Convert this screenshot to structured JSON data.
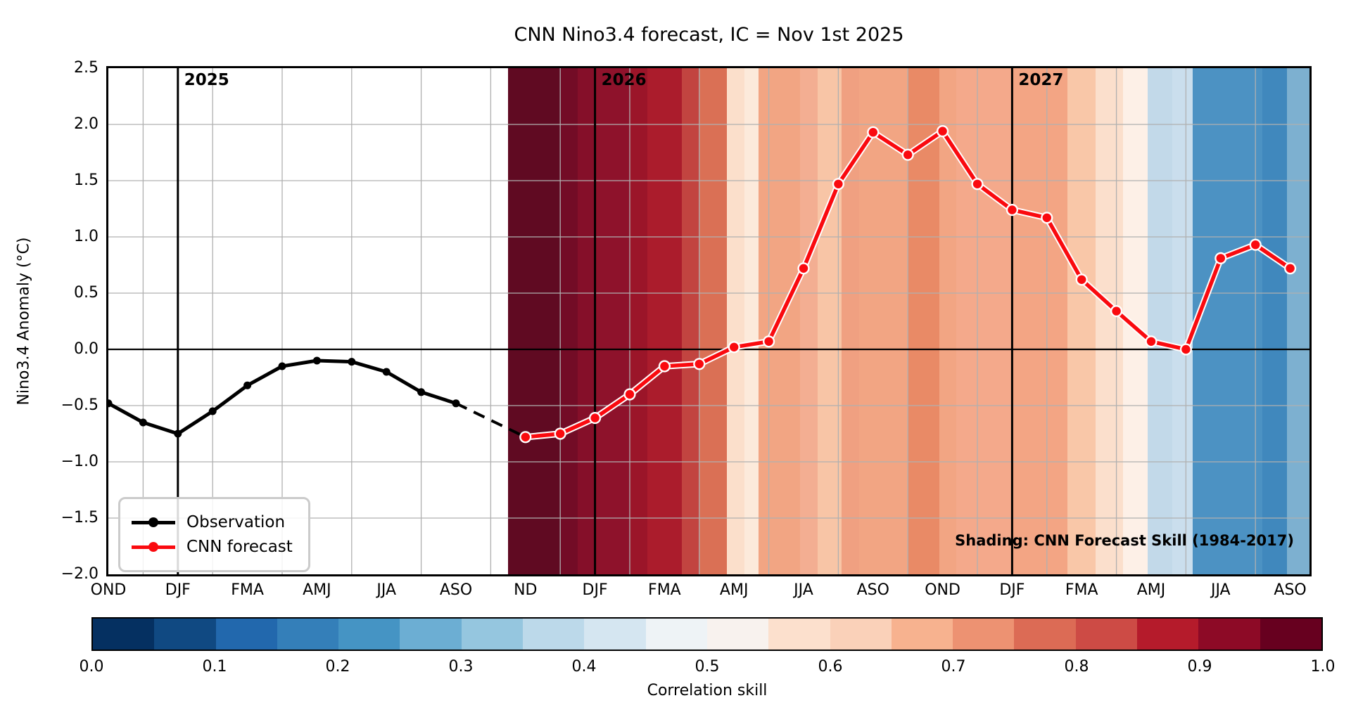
{
  "title": "CNN Nino3.4 forecast, IC = Nov 1st 2025",
  "axes": {
    "ylabel": "Nino3.4 Anomaly (°C)",
    "y_tick_labels": [
      "2.5",
      "2.0",
      "1.5",
      "1.0",
      "0.5",
      "0.0",
      "−0.5",
      "−1.0",
      "−1.5",
      "−2.0"
    ],
    "y_tick_values": [
      2.5,
      2.0,
      1.5,
      1.0,
      0.5,
      0.0,
      -0.5,
      -1.0,
      -1.5,
      -2.0
    ],
    "x_tick_labels": [
      "OND",
      "DJF",
      "FMA",
      "AMJ",
      "JJA",
      "ASO",
      "ND",
      "DJF",
      "FMA",
      "AMJ",
      "JJA",
      "ASO",
      "OND",
      "DJF",
      "FMA",
      "AMJ",
      "JJA",
      "ASO"
    ],
    "x_tick_indices": [
      0,
      2,
      4,
      6,
      8,
      10,
      12,
      14,
      16,
      18,
      20,
      22,
      24,
      26,
      28,
      30,
      32,
      34
    ]
  },
  "year_markers": [
    {
      "label": "2025",
      "month_index": 2
    },
    {
      "label": "2026",
      "month_index": 14
    },
    {
      "label": "2027",
      "month_index": 26
    }
  ],
  "legend": [
    {
      "label": "Observation",
      "color": "#000000"
    },
    {
      "label": "CNN forecast",
      "color": "#fa0a0f"
    }
  ],
  "annotation": "Shading: CNN Forecast Skill (1984-2017)",
  "chart_data": {
    "type": "line",
    "title": "CNN Nino3.4 forecast, IC = Nov 1st 2025",
    "xlabel_note": "x unit = month index, 0 = OND 2024; ticks labeled every 2 months",
    "ylabel": "Nino3.4 Anomaly (°C)",
    "ylim": [
      -2.0,
      2.5
    ],
    "xlim": [
      0,
      34.56
    ],
    "grid": true,
    "series": [
      {
        "name": "Observation",
        "color": "#000000",
        "style": "solid",
        "marker": "circle",
        "x": [
          0,
          1,
          2,
          3,
          4,
          5,
          6,
          7,
          8,
          9,
          10
        ],
        "values": [
          -0.48,
          -0.65,
          -0.75,
          -0.55,
          -0.32,
          -0.15,
          -0.1,
          -0.11,
          -0.2,
          -0.38,
          -0.48
        ]
      },
      {
        "name": "connector",
        "color": "#000000",
        "style": "dashed",
        "marker": "none",
        "x": [
          10,
          12
        ],
        "values": [
          -0.48,
          -0.78
        ]
      },
      {
        "name": "CNN forecast",
        "color": "#fa0a0f",
        "style": "solid",
        "marker": "circle-white-edge",
        "x": [
          12,
          13,
          14,
          15,
          16,
          17,
          18,
          19,
          20,
          21,
          22,
          23,
          24,
          25,
          26,
          27,
          28,
          29,
          30,
          31,
          32,
          33,
          34
        ],
        "values": [
          -0.78,
          -0.75,
          -0.61,
          -0.4,
          -0.15,
          -0.13,
          0.02,
          0.07,
          0.72,
          1.47,
          1.93,
          1.73,
          1.94,
          1.47,
          1.24,
          1.17,
          0.62,
          0.34,
          0.07,
          0.0,
          0.81,
          0.93,
          0.72
        ]
      }
    ],
    "skill_shading_bands": [
      {
        "from": 11.5,
        "to": 13.0,
        "color": "#600a22",
        "skill_approx": 0.97
      },
      {
        "from": 13.0,
        "to": 13.5,
        "color": "#730c26",
        "skill_approx": 0.93
      },
      {
        "from": 13.5,
        "to": 14.0,
        "color": "#850f29",
        "skill_approx": 0.92
      },
      {
        "from": 14.0,
        "to": 15.0,
        "color": "#8e122b",
        "skill_approx": 0.91
      },
      {
        "from": 15.0,
        "to": 15.5,
        "color": "#9b1529",
        "skill_approx": 0.89
      },
      {
        "from": 15.5,
        "to": 16.5,
        "color": "#ab1c2c",
        "skill_approx": 0.87
      },
      {
        "from": 16.5,
        "to": 17.0,
        "color": "#c24440",
        "skill_approx": 0.83
      },
      {
        "from": 17.0,
        "to": 17.8,
        "color": "#da7055",
        "skill_approx": 0.78
      },
      {
        "from": 17.8,
        "to": 18.3,
        "color": "#fbdfcb",
        "skill_approx": 0.59
      },
      {
        "from": 18.3,
        "to": 18.7,
        "color": "#fceadb",
        "skill_approx": 0.57
      },
      {
        "from": 18.7,
        "to": 19.9,
        "color": "#f2a583",
        "skill_approx": 0.66
      },
      {
        "from": 19.9,
        "to": 20.4,
        "color": "#f3ae92",
        "skill_approx": 0.65
      },
      {
        "from": 20.4,
        "to": 21.1,
        "color": "#f8c5a6",
        "skill_approx": 0.62
      },
      {
        "from": 21.1,
        "to": 21.6,
        "color": "#f0a081",
        "skill_approx": 0.67
      },
      {
        "from": 21.6,
        "to": 23.0,
        "color": "#f2a583",
        "skill_approx": 0.66
      },
      {
        "from": 23.0,
        "to": 23.9,
        "color": "#e98a66",
        "skill_approx": 0.7
      },
      {
        "from": 23.9,
        "to": 24.4,
        "color": "#f2a583",
        "skill_approx": 0.66
      },
      {
        "from": 24.4,
        "to": 26.0,
        "color": "#f4a98b",
        "skill_approx": 0.65
      },
      {
        "from": 26.0,
        "to": 27.6,
        "color": "#f3a584",
        "skill_approx": 0.66
      },
      {
        "from": 27.6,
        "to": 28.4,
        "color": "#f9c7a8",
        "skill_approx": 0.62
      },
      {
        "from": 28.4,
        "to": 29.2,
        "color": "#fbdfcc",
        "skill_approx": 0.59
      },
      {
        "from": 29.2,
        "to": 29.9,
        "color": "#fdf0e7",
        "skill_approx": 0.54
      },
      {
        "from": 29.9,
        "to": 30.6,
        "color": "#c2d9e9",
        "skill_approx": 0.43
      },
      {
        "from": 30.6,
        "to": 31.2,
        "color": "#cadeed",
        "skill_approx": 0.44
      },
      {
        "from": 31.2,
        "to": 33.2,
        "color": "#4c92c3",
        "skill_approx": 0.22
      },
      {
        "from": 33.2,
        "to": 33.9,
        "color": "#4088bd",
        "skill_approx": 0.2
      },
      {
        "from": 33.9,
        "to": 34.56,
        "color": "#7db0d0",
        "skill_approx": 0.3
      }
    ],
    "colorbar": {
      "label": "Correlation skill",
      "tick_labels": [
        "0.0",
        "0.1",
        "0.2",
        "0.3",
        "0.4",
        "0.5",
        "0.6",
        "0.7",
        "0.8",
        "0.9",
        "1.0"
      ],
      "n_segments": 20,
      "segment_colors": [
        "#053061",
        "#104982",
        "#2268ad",
        "#347fb9",
        "#4594c4",
        "#6caed3",
        "#95c6df",
        "#bcd9ea",
        "#d5e6f1",
        "#eef3f6",
        "#f8f2ee",
        "#fce0cd",
        "#fad1b9",
        "#f7b28f",
        "#ed9272",
        "#dc6b55",
        "#cd4b45",
        "#b51b2b",
        "#8d0a26",
        "#67001f"
      ]
    }
  }
}
